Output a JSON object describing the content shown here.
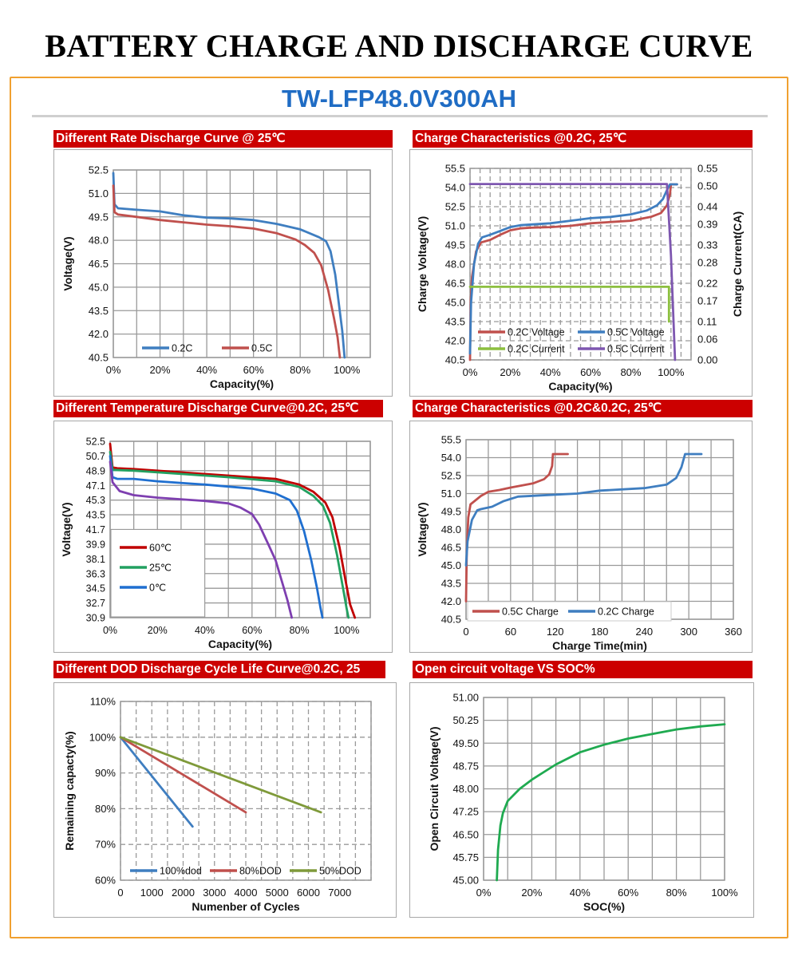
{
  "page_title": "BATTERY CHARGE AND DISCHARGE CURVE",
  "model": "TW-LFP48.0V300AH",
  "chart_data": [
    {
      "type": "line",
      "title": "Different Rate Discharge Curve @ 25℃",
      "xlabel": "Capacity(%)",
      "ylabel": "Voltage(V)",
      "xlim": [
        0,
        110
      ],
      "ylim": [
        40.5,
        52.5
      ],
      "x_ticks": [
        "0%",
        "20%",
        "40%",
        "60%",
        "80%",
        "100%"
      ],
      "y_ticks": [
        "52.5",
        "51.0",
        "49.5",
        "48.0",
        "46.5",
        "45.0",
        "43.5",
        "42.0",
        "40.5"
      ],
      "grid": true,
      "legend": "bottom-inside",
      "series": [
        {
          "name": "0.2C",
          "color": "#3f7ec0",
          "points": [
            [
              0,
              52.3
            ],
            [
              0.5,
              50.3
            ],
            [
              2,
              50.05
            ],
            [
              10,
              49.95
            ],
            [
              20,
              49.85
            ],
            [
              30,
              49.6
            ],
            [
              40,
              49.45
            ],
            [
              50,
              49.4
            ],
            [
              60,
              49.3
            ],
            [
              70,
              49.05
            ],
            [
              80,
              48.7
            ],
            [
              88,
              48.2
            ],
            [
              91,
              47.95
            ],
            [
              93,
              47.3
            ],
            [
              95,
              45.8
            ],
            [
              96.5,
              44
            ],
            [
              98,
              42.2
            ],
            [
              99,
              40.5
            ]
          ]
        },
        {
          "name": "0.5C",
          "color": "#c0504d",
          "points": [
            [
              0,
              51.5
            ],
            [
              0.5,
              49.8
            ],
            [
              2,
              49.65
            ],
            [
              10,
              49.5
            ],
            [
              20,
              49.3
            ],
            [
              30,
              49.15
            ],
            [
              40,
              49.0
            ],
            [
              50,
              48.9
            ],
            [
              60,
              48.75
            ],
            [
              70,
              48.45
            ],
            [
              78,
              48.05
            ],
            [
              82,
              47.7
            ],
            [
              86,
              47.2
            ],
            [
              89,
              46.4
            ],
            [
              92,
              44.8
            ],
            [
              94.5,
              43
            ],
            [
              96,
              41.8
            ],
            [
              97,
              40.5
            ]
          ]
        }
      ]
    },
    {
      "type": "line",
      "title": "Charge Characteristics @0.2C, 25℃",
      "xlabel": "Capacity(%)",
      "ylabel": "Charge Voltage(V)",
      "y2label": "Charge Current(CA)",
      "xlim": [
        0,
        110
      ],
      "ylim": [
        40.5,
        55.5
      ],
      "y2lim": [
        0,
        0.55
      ],
      "x_ticks": [
        "0%",
        "20%",
        "40%",
        "60%",
        "80%",
        "100%"
      ],
      "y_ticks": [
        "55.5",
        "54.0",
        "52.5",
        "51.0",
        "49.5",
        "48.0",
        "46.5",
        "45.0",
        "43.5",
        "42.0",
        "40.5"
      ],
      "y2_ticks": [
        "0.55",
        "0.50",
        "0.44",
        "0.39",
        "0.33",
        "0.28",
        "0.22",
        "0.17",
        "0.11",
        "0.06",
        "0.00"
      ],
      "grid": "dashed",
      "legend": "bottom-left-inside",
      "series": [
        {
          "name": "0.2C Voltage",
          "color": "#c0504d",
          "axis": "left",
          "points": [
            [
              0,
              40.5
            ],
            [
              0.3,
              45
            ],
            [
              1,
              47
            ],
            [
              3,
              49
            ],
            [
              5.5,
              49.7
            ],
            [
              10,
              49.9
            ],
            [
              15,
              50.3
            ],
            [
              20,
              50.65
            ],
            [
              25,
              50.8
            ],
            [
              30,
              50.85
            ],
            [
              40,
              50.9
            ],
            [
              50,
              51.0
            ],
            [
              60,
              51.2
            ],
            [
              70,
              51.3
            ],
            [
              80,
              51.4
            ],
            [
              90,
              51.7
            ],
            [
              95,
              52.0
            ],
            [
              98,
              52.6
            ],
            [
              99.5,
              53.5
            ],
            [
              100,
              54.25
            ],
            [
              103,
              54.25
            ]
          ]
        },
        {
          "name": "0.5C Voltage",
          "color": "#3f7ec0",
          "axis": "left",
          "points": [
            [
              0,
              41
            ],
            [
              0.5,
              45
            ],
            [
              2,
              48
            ],
            [
              4,
              49.6
            ],
            [
              6,
              50.1
            ],
            [
              10,
              50.3
            ],
            [
              15,
              50.6
            ],
            [
              20,
              50.9
            ],
            [
              25,
              51.05
            ],
            [
              40,
              51.2
            ],
            [
              50,
              51.4
            ],
            [
              60,
              51.6
            ],
            [
              70,
              51.7
            ],
            [
              80,
              51.9
            ],
            [
              88,
              52.2
            ],
            [
              93,
              52.6
            ],
            [
              96,
              53.1
            ],
            [
              98,
              53.8
            ],
            [
              99.5,
              54.25
            ],
            [
              103,
              54.25
            ]
          ]
        },
        {
          "name": "0.2C Current",
          "color": "#8cbf3f",
          "axis": "right",
          "points": [
            [
              0,
              0.21
            ],
            [
              99,
              0.21
            ],
            [
              99,
              0.11
            ]
          ]
        },
        {
          "name": "0.5C Current",
          "color": "#7e57b0",
          "axis": "right",
          "points": [
            [
              0,
              0.505
            ],
            [
              98,
              0.505
            ],
            [
              100,
              0.3
            ],
            [
              102,
              0
            ]
          ]
        }
      ]
    },
    {
      "type": "line",
      "title": "Different Temperature Discharge Curve@0.2C, 25℃",
      "xlabel": "Capacity(%)",
      "ylabel": "Voltage(V)",
      "xlim": [
        0,
        110
      ],
      "ylim": [
        30.9,
        52.5
      ],
      "x_ticks": [
        "0%",
        "20%",
        "40%",
        "60%",
        "80%",
        "100%"
      ],
      "y_ticks": [
        "52.5",
        "50.7",
        "48.9",
        "47.1",
        "45.3",
        "43.5",
        "41.7",
        "39.9",
        "38.1",
        "36.3",
        "34.5",
        "32.7",
        "30.9"
      ],
      "grid": true,
      "legend": "left-inside",
      "series": [
        {
          "name": "60℃",
          "color": "#c00000",
          "points": [
            [
              0,
              52.2
            ],
            [
              1,
              49.3
            ],
            [
              3,
              49.2
            ],
            [
              10,
              49.1
            ],
            [
              30,
              48.7
            ],
            [
              50,
              48.3
            ],
            [
              70,
              47.9
            ],
            [
              80,
              47.2
            ],
            [
              86,
              46.3
            ],
            [
              91,
              45.0
            ],
            [
              94,
              43.2
            ],
            [
              97,
              39.5
            ],
            [
              99.5,
              35.5
            ],
            [
              101.5,
              32.5
            ],
            [
              103.5,
              30.9
            ]
          ]
        },
        {
          "name": "25℃",
          "color": "#22a060",
          "points": [
            [
              0,
              51.2
            ],
            [
              1,
              49.0
            ],
            [
              10,
              48.9
            ],
            [
              30,
              48.5
            ],
            [
              50,
              48.1
            ],
            [
              70,
              47.6
            ],
            [
              80,
              46.9
            ],
            [
              86,
              45.8
            ],
            [
              90,
              44.6
            ],
            [
              93,
              42.5
            ],
            [
              96,
              38.5
            ],
            [
              98.5,
              34.5
            ],
            [
              100,
              32
            ],
            [
              100.8,
              30.9
            ]
          ]
        },
        {
          "name": "0℃",
          "color": "#1f6fd0",
          "points": [
            [
              0,
              50.7
            ],
            [
              1,
              48.1
            ],
            [
              3,
              47.9
            ],
            [
              10,
              47.9
            ],
            [
              20,
              47.6
            ],
            [
              40,
              47.2
            ],
            [
              60,
              46.7
            ],
            [
              70,
              46.1
            ],
            [
              76,
              45.3
            ],
            [
              79,
              44
            ],
            [
              82,
              41.5
            ],
            [
              85,
              38
            ],
            [
              87.5,
              34.5
            ],
            [
              89,
              32
            ],
            [
              89.8,
              30.9
            ]
          ]
        },
        {
          "color": "#7e3fb0",
          "points": [
            [
              0,
              50
            ],
            [
              1,
              47.5
            ],
            [
              4,
              46.4
            ],
            [
              10,
              45.9
            ],
            [
              20,
              45.6
            ],
            [
              40,
              45.2
            ],
            [
              50,
              44.9
            ],
            [
              55,
              44.4
            ],
            [
              60,
              43.6
            ],
            [
              63,
              42.3
            ],
            [
              67,
              39.8
            ],
            [
              70,
              37.9
            ],
            [
              73,
              35
            ],
            [
              75,
              33
            ],
            [
              76.8,
              30.9
            ]
          ]
        }
      ]
    },
    {
      "type": "line",
      "title": "Charge Characteristics @0.2C&0.2C, 25℃",
      "xlabel": "Charge Time(min)",
      "ylabel": "Voltage(V)",
      "xlim": [
        0,
        360
      ],
      "ylim": [
        40.5,
        55.5
      ],
      "x_ticks": [
        "0",
        "60",
        "120",
        "180",
        "240",
        "300",
        "360"
      ],
      "y_ticks": [
        "55.5",
        "54.0",
        "52.5",
        "51.0",
        "49.5",
        "48.0",
        "46.5",
        "45.0",
        "43.5",
        "42.0",
        "40.5"
      ],
      "grid": true,
      "legend": "bottom-inside",
      "series": [
        {
          "name": "0.5C Charge",
          "color": "#c0504d",
          "points": [
            [
              0,
              42
            ],
            [
              1,
              46
            ],
            [
              3,
              49
            ],
            [
              6,
              50.1
            ],
            [
              12,
              50.4
            ],
            [
              20,
              50.8
            ],
            [
              30,
              51.15
            ],
            [
              45,
              51.3
            ],
            [
              60,
              51.5
            ],
            [
              90,
              51.85
            ],
            [
              105,
              52.2
            ],
            [
              112,
              52.6
            ],
            [
              116,
              53.3
            ],
            [
              117,
              54.3
            ],
            [
              137,
              54.3
            ]
          ]
        },
        {
          "name": "0.2C Charge",
          "color": "#3f7ec0",
          "points": [
            [
              0,
              45
            ],
            [
              2,
              47
            ],
            [
              8,
              48.8
            ],
            [
              15,
              49.6
            ],
            [
              20,
              49.7
            ],
            [
              35,
              49.9
            ],
            [
              50,
              50.35
            ],
            [
              70,
              50.75
            ],
            [
              100,
              50.85
            ],
            [
              150,
              51.0
            ],
            [
              180,
              51.25
            ],
            [
              240,
              51.45
            ],
            [
              270,
              51.75
            ],
            [
              283,
              52.3
            ],
            [
              290,
              53.2
            ],
            [
              295,
              54.3
            ],
            [
              317,
              54.3
            ]
          ]
        }
      ]
    },
    {
      "type": "line",
      "title": "Different DOD Discharge Cycle Life Curve@0.2C, 25",
      "xlabel": "Numenber of Cycles",
      "ylabel": "Remaining capacty(%)",
      "xlim": [
        0,
        8000
      ],
      "ylim": [
        60,
        110
      ],
      "x_ticks": [
        "0",
        "1000",
        "2000",
        "3000",
        "4000",
        "5000",
        "6000",
        "7000"
      ],
      "y_ticks": [
        "110%",
        "100%",
        "90%",
        "80%",
        "70%",
        "60%"
      ],
      "grid": "dashed",
      "legend": "bottom-inside",
      "series": [
        {
          "name": "100%dod",
          "color": "#3f7ec0",
          "points": [
            [
              0,
              100
            ],
            [
              2300,
              75
            ]
          ]
        },
        {
          "name": "80%DOD",
          "color": "#c0504d",
          "points": [
            [
              0,
              100
            ],
            [
              4000,
              79
            ]
          ]
        },
        {
          "name": "50%DOD",
          "color": "#7f9a3a",
          "points": [
            [
              0,
              100
            ],
            [
              6400,
              79
            ]
          ]
        }
      ]
    },
    {
      "type": "line",
      "title": "Open circuit voltage VS SOC%",
      "xlabel": "SOC(%)",
      "ylabel": "Open Circuit Voltage(V)",
      "xlim": [
        0,
        100
      ],
      "ylim": [
        45,
        51
      ],
      "x_ticks": [
        "0%",
        "20%",
        "40%",
        "60%",
        "80%",
        "100%"
      ],
      "y_ticks": [
        "51.00",
        "50.25",
        "49.50",
        "48.75",
        "48.00",
        "47.25",
        "46.50",
        "45.75",
        "45.00"
      ],
      "grid": true,
      "series": [
        {
          "color": "#1faa50",
          "points": [
            [
              5.5,
              45
            ],
            [
              6,
              46
            ],
            [
              7,
              46.8
            ],
            [
              8,
              47.2
            ],
            [
              10,
              47.6
            ],
            [
              15,
              48.0
            ],
            [
              20,
              48.3
            ],
            [
              25,
              48.55
            ],
            [
              30,
              48.8
            ],
            [
              40,
              49.2
            ],
            [
              50,
              49.45
            ],
            [
              60,
              49.65
            ],
            [
              70,
              49.8
            ],
            [
              80,
              49.95
            ],
            [
              90,
              50.05
            ],
            [
              100,
              50.12
            ]
          ]
        }
      ]
    }
  ]
}
